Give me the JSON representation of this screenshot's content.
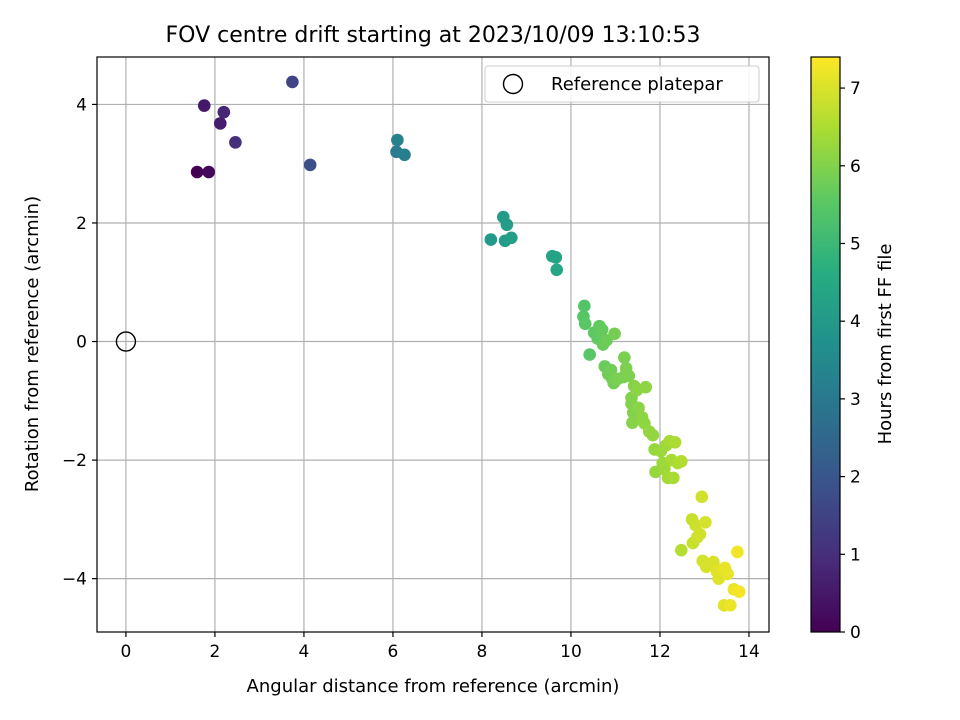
{
  "chart_data": {
    "type": "scatter",
    "title": "FOV centre drift starting at 2023/10/09 13:10:53",
    "xlabel": "Angular distance from reference (arcmin)",
    "ylabel": "Rotation from reference (arcmin)",
    "xlim": [
      -0.65,
      14.45
    ],
    "ylim": [
      -4.9,
      4.8
    ],
    "xticks": [
      0,
      2,
      4,
      6,
      8,
      10,
      12,
      14
    ],
    "yticks": [
      -4,
      -2,
      0,
      2,
      4
    ],
    "xtick_labels": [
      "0",
      "2",
      "4",
      "6",
      "8",
      "10",
      "12",
      "14"
    ],
    "ytick_labels": [
      "−4",
      "−2",
      "0",
      "2",
      "4"
    ],
    "grid": true,
    "legend": {
      "position": "top-right",
      "entries": [
        "Reference platepar"
      ]
    },
    "reference_point": {
      "x": 0,
      "y": 0,
      "label": "Reference platepar"
    },
    "colorbar": {
      "label": "Hours from first FF file",
      "colormap": "viridis",
      "range": [
        0,
        7.4
      ],
      "ticks": [
        0,
        1,
        2,
        3,
        4,
        5,
        6,
        7
      ],
      "tick_labels": [
        "0",
        "1",
        "2",
        "3",
        "4",
        "5",
        "6",
        "7"
      ]
    },
    "series": [
      {
        "points": [
          [
            1.6,
            2.86,
            0.0
          ],
          [
            1.86,
            2.86,
            0.15
          ],
          [
            1.76,
            3.98,
            0.5
          ],
          [
            2.12,
            3.68,
            0.6
          ],
          [
            2.2,
            3.87,
            0.8
          ],
          [
            2.46,
            3.36,
            1.0
          ],
          [
            3.74,
            4.38,
            1.5
          ],
          [
            4.14,
            2.98,
            1.8
          ],
          [
            6.08,
            3.2,
            3.1
          ],
          [
            6.1,
            3.4,
            3.3
          ],
          [
            6.26,
            3.15,
            3.2
          ],
          [
            8.2,
            1.72,
            4.0
          ],
          [
            8.48,
            2.1,
            4.05
          ],
          [
            8.56,
            1.97,
            4.1
          ],
          [
            8.52,
            1.7,
            4.1
          ],
          [
            8.66,
            1.75,
            4.15
          ],
          [
            9.58,
            1.44,
            4.3
          ],
          [
            9.66,
            1.42,
            4.35
          ],
          [
            9.68,
            1.21,
            4.4
          ],
          [
            10.3,
            0.6,
            5.4
          ],
          [
            10.28,
            0.42,
            5.45
          ],
          [
            10.32,
            0.3,
            5.5
          ],
          [
            10.42,
            -0.22,
            5.5
          ],
          [
            10.52,
            0.15,
            5.55
          ],
          [
            10.6,
            0.05,
            5.6
          ],
          [
            10.64,
            0.26,
            5.6
          ],
          [
            10.7,
            0.2,
            5.65
          ],
          [
            10.72,
            -0.05,
            5.7
          ],
          [
            10.76,
            -0.42,
            5.7
          ],
          [
            10.8,
            0.02,
            5.75
          ],
          [
            10.84,
            -0.55,
            5.75
          ],
          [
            10.9,
            -0.48,
            5.8
          ],
          [
            10.92,
            -0.62,
            5.8
          ],
          [
            10.96,
            -0.7,
            5.85
          ],
          [
            10.98,
            0.13,
            5.85
          ],
          [
            11.05,
            -0.63,
            5.9
          ],
          [
            11.18,
            -0.6,
            5.9
          ],
          [
            11.2,
            -0.27,
            5.9
          ],
          [
            11.24,
            -0.45,
            5.95
          ],
          [
            11.3,
            -0.58,
            5.95
          ],
          [
            11.36,
            -0.95,
            6.0
          ],
          [
            11.36,
            -1.05,
            6.0
          ],
          [
            11.4,
            -1.2,
            6.0
          ],
          [
            11.42,
            -0.75,
            6.05
          ],
          [
            11.38,
            -1.37,
            6.05
          ],
          [
            11.48,
            -0.82,
            6.1
          ],
          [
            11.52,
            -1.12,
            6.1
          ],
          [
            11.6,
            -1.28,
            6.15
          ],
          [
            11.65,
            -1.38,
            6.15
          ],
          [
            11.68,
            -0.77,
            6.15
          ],
          [
            11.76,
            -1.52,
            6.2
          ],
          [
            11.84,
            -1.58,
            6.2
          ],
          [
            11.88,
            -1.82,
            6.25
          ],
          [
            11.9,
            -2.2,
            6.25
          ],
          [
            12.02,
            -1.85,
            6.3
          ],
          [
            12.06,
            -2.05,
            6.3
          ],
          [
            12.1,
            -2.15,
            6.35
          ],
          [
            12.14,
            -1.75,
            6.35
          ],
          [
            12.18,
            -2.3,
            6.4
          ],
          [
            12.22,
            -1.68,
            6.4
          ],
          [
            12.26,
            -2.0,
            6.45
          ],
          [
            12.3,
            -2.3,
            6.45
          ],
          [
            12.34,
            -1.7,
            6.5
          ],
          [
            12.4,
            -2.05,
            6.5
          ],
          [
            12.48,
            -2.02,
            6.55
          ],
          [
            12.48,
            -3.52,
            6.6
          ],
          [
            12.72,
            -3.0,
            6.8
          ],
          [
            12.74,
            -3.4,
            6.8
          ],
          [
            12.8,
            -3.1,
            6.85
          ],
          [
            12.84,
            -3.3,
            6.85
          ],
          [
            12.9,
            -3.25,
            6.9
          ],
          [
            12.94,
            -2.62,
            6.9
          ],
          [
            12.96,
            -3.7,
            6.95
          ],
          [
            13.02,
            -3.05,
            6.95
          ],
          [
            13.04,
            -3.8,
            7.0
          ],
          [
            13.2,
            -3.72,
            7.0
          ],
          [
            13.28,
            -3.88,
            7.05
          ],
          [
            13.32,
            -4.0,
            7.05
          ],
          [
            13.38,
            -3.85,
            7.1
          ],
          [
            13.44,
            -4.45,
            7.1
          ],
          [
            13.46,
            -3.82,
            7.15
          ],
          [
            13.52,
            -3.92,
            7.15
          ],
          [
            13.58,
            -4.45,
            7.2
          ],
          [
            13.66,
            -4.18,
            7.2
          ],
          [
            13.74,
            -3.55,
            7.25
          ],
          [
            13.78,
            -4.22,
            7.3
          ]
        ]
      }
    ]
  }
}
